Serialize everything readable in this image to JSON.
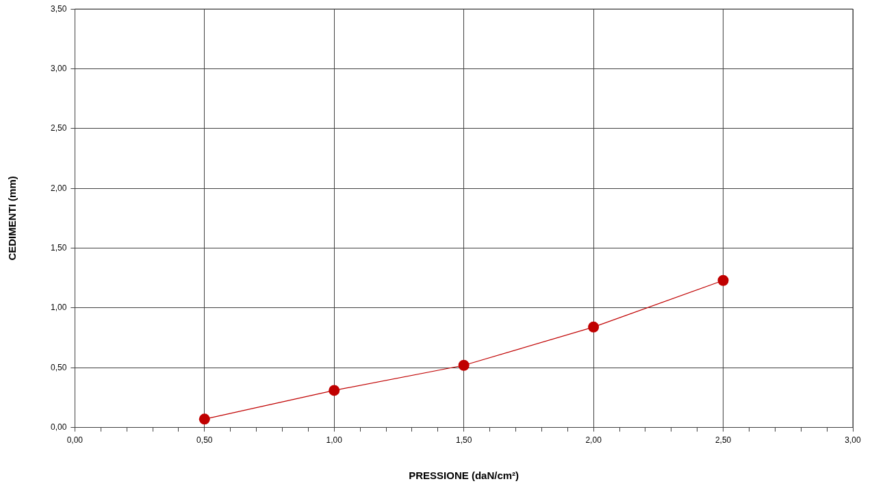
{
  "chart_data": {
    "type": "line",
    "xlabel": "PRESSIONE (daN/cm²)",
    "ylabel": "CEDIMENTI (mm)",
    "x": [
      0.5,
      1.0,
      1.5,
      2.0,
      2.5
    ],
    "series": [
      {
        "color": "#c00000",
        "values": [
          0.07,
          0.31,
          0.52,
          0.84,
          1.23
        ]
      }
    ],
    "xlim": [
      0,
      3
    ],
    "xticks": [
      {
        "value": 0,
        "label": "0,00"
      },
      {
        "value": 0.1,
        "label": null
      },
      {
        "value": 0.2,
        "label": null
      },
      {
        "value": 0.3,
        "label": null
      },
      {
        "value": 0.4,
        "label": null
      },
      {
        "value": 0.5,
        "label": "0,50"
      },
      {
        "value": 0.6,
        "label": null
      },
      {
        "value": 0.7,
        "label": null
      },
      {
        "value": 0.8,
        "label": null
      },
      {
        "value": 0.9,
        "label": null
      },
      {
        "value": 1.0,
        "label": "1,00"
      },
      {
        "value": 1.1,
        "label": null
      },
      {
        "value": 1.2,
        "label": null
      },
      {
        "value": 1.3,
        "label": null
      },
      {
        "value": 1.4,
        "label": null
      },
      {
        "value": 1.5,
        "label": "1,50"
      },
      {
        "value": 1.6,
        "label": null
      },
      {
        "value": 1.7,
        "label": null
      },
      {
        "value": 1.8,
        "label": null
      },
      {
        "value": 1.9,
        "label": null
      },
      {
        "value": 2.0,
        "label": "2,00"
      },
      {
        "value": 2.1,
        "label": null
      },
      {
        "value": 2.2,
        "label": null
      },
      {
        "value": 2.3,
        "label": null
      },
      {
        "value": 2.4,
        "label": null
      },
      {
        "value": 2.5,
        "label": "2,50"
      },
      {
        "value": 2.6,
        "label": null
      },
      {
        "value": 2.7,
        "label": null
      },
      {
        "value": 2.8,
        "label": null
      },
      {
        "value": 2.9,
        "label": null
      },
      {
        "value": 3.0,
        "label": "3,00"
      }
    ],
    "ylim": [
      0,
      3.5
    ],
    "yticks": [
      {
        "value": 0,
        "label": "0,00"
      },
      {
        "value": 0.5,
        "label": "0,50"
      },
      {
        "value": 1.0,
        "label": "1,00"
      },
      {
        "value": 1.5,
        "label": "1,50"
      },
      {
        "value": 2.0,
        "label": "2,00"
      },
      {
        "value": 2.5,
        "label": "2,50"
      },
      {
        "value": 3.0,
        "label": "3,00"
      },
      {
        "value": 3.5,
        "label": "3,50"
      }
    ],
    "grid": true,
    "legend": false,
    "marker": "circle",
    "line_style": "solid"
  }
}
